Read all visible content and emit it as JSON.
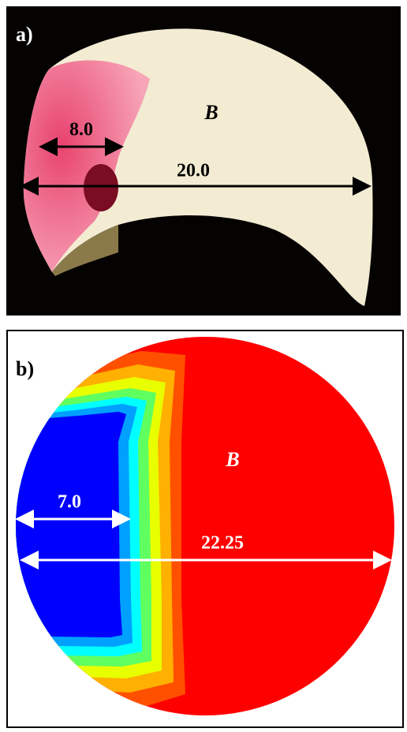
{
  "panels": [
    {
      "label": "a)",
      "region_label": "B",
      "dimensions": [
        "8.0",
        "20.0"
      ]
    },
    {
      "label": "b)",
      "region_label": "B",
      "dimensions": [
        "7.0",
        "22.25"
      ]
    }
  ]
}
